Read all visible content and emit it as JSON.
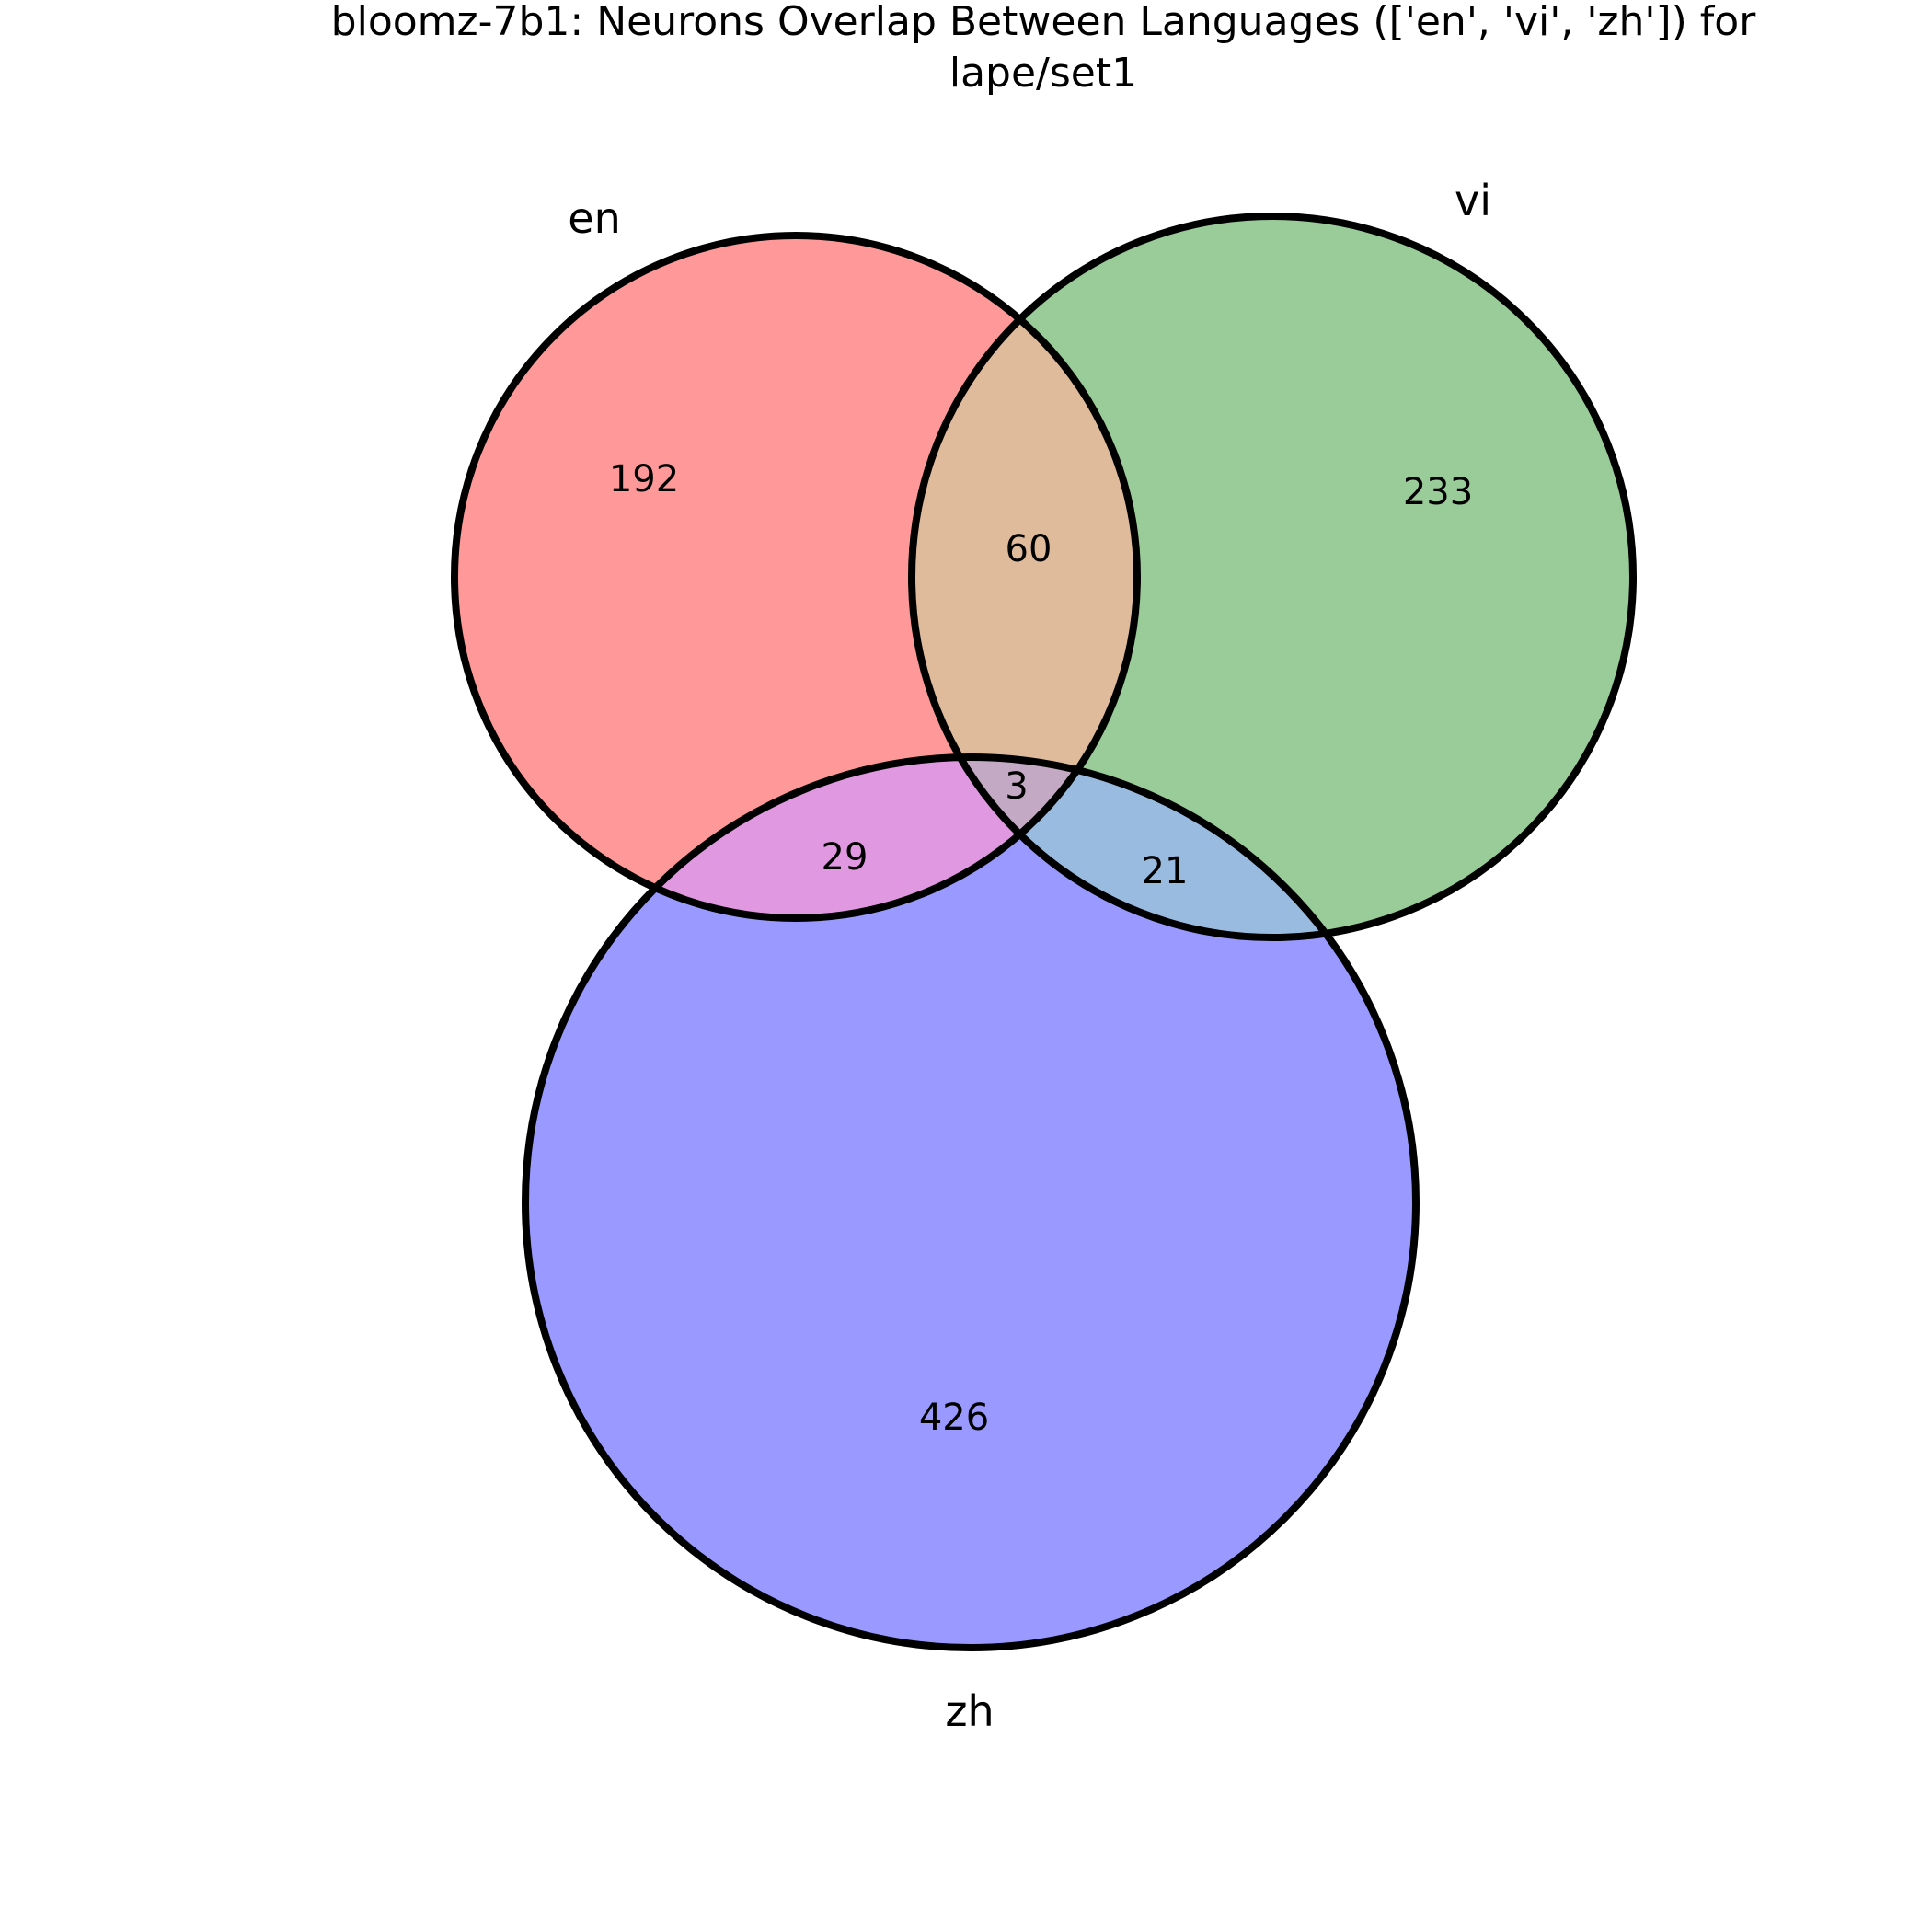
{
  "title": {
    "line1": "bloomz-7b1: Neurons Overlap Between Languages (['en', 'vi', 'zh']) for",
    "line2": "lape/set1"
  },
  "sets": [
    {
      "id": "en",
      "label": "en",
      "color": "#ff9999"
    },
    {
      "id": "vi",
      "label": "vi",
      "color": "#99cc99"
    },
    {
      "id": "zh",
      "label": "zh",
      "color": "#9999ff"
    }
  ],
  "regions": {
    "en_only": "192",
    "vi_only": "233",
    "zh_only": "426",
    "en_vi": "60",
    "en_zh": "29",
    "vi_zh": "21",
    "en_vi_zh": "3"
  },
  "region_colors": {
    "en_vi": "#dfbb9c",
    "en_zh": "#e099e0",
    "vi_zh": "#99bbdf",
    "en_vi_zh": "#c3a9c3"
  }
}
